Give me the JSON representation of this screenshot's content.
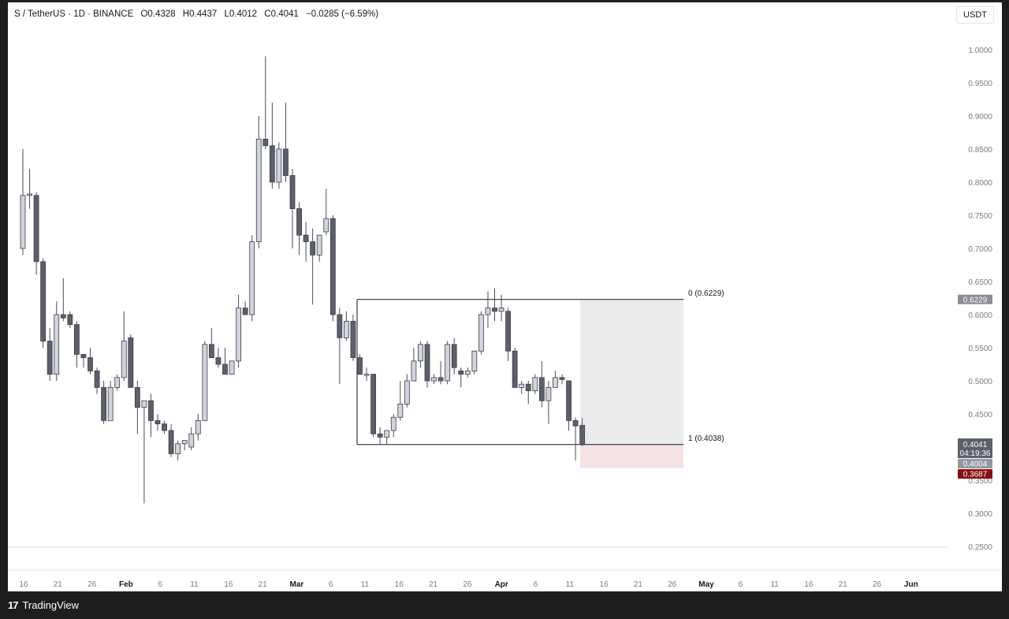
{
  "header": {
    "symbol": "S / TetherUS · 1D · BINANCE",
    "o_label": "O",
    "o_value": "0.4328",
    "h_label": "H",
    "h_value": "0.4437",
    "l_label": "L",
    "l_value": "0.4012",
    "c_label": "C",
    "c_value": "0.4041",
    "change": "−0.0285 (−6.59%)"
  },
  "currency_button": "USDT",
  "brand": {
    "logo_mark": "17",
    "name": "TradingView"
  },
  "chart_data": {
    "type": "candlestick",
    "x_axis_labels": [
      "16",
      "21",
      "26",
      "Feb",
      "6",
      "11",
      "16",
      "21",
      "Mar",
      "6",
      "11",
      "16",
      "21",
      "26",
      "Apr",
      "6",
      "11",
      "16",
      "21",
      "26",
      "May",
      "6",
      "11",
      "16",
      "21",
      "26",
      "Jun"
    ],
    "y_axis_labels": [
      "1.0000",
      "0.9500",
      "0.9000",
      "0.8500",
      "0.8000",
      "0.7500",
      "0.7000",
      "0.6500",
      "0.6000",
      "0.5500",
      "0.5000",
      "0.4500",
      "0.4000",
      "0.3500",
      "0.3000",
      "0.2500"
    ],
    "ylim": [
      0.25,
      1.0
    ],
    "grid": false,
    "candles": [
      {
        "o": 0.7,
        "h": 0.85,
        "l": 0.69,
        "c": 0.78
      },
      {
        "o": 0.78,
        "h": 0.82,
        "l": 0.76,
        "c": 0.782
      },
      {
        "o": 0.78,
        "h": 0.785,
        "l": 0.66,
        "c": 0.68
      },
      {
        "o": 0.68,
        "h": 0.685,
        "l": 0.55,
        "c": 0.56
      },
      {
        "o": 0.56,
        "h": 0.58,
        "l": 0.5,
        "c": 0.51
      },
      {
        "o": 0.51,
        "h": 0.62,
        "l": 0.5,
        "c": 0.6
      },
      {
        "o": 0.6,
        "h": 0.655,
        "l": 0.59,
        "c": 0.595
      },
      {
        "o": 0.6,
        "h": 0.605,
        "l": 0.58,
        "c": 0.585
      },
      {
        "o": 0.585,
        "h": 0.59,
        "l": 0.52,
        "c": 0.54
      },
      {
        "o": 0.54,
        "h": 0.54,
        "l": 0.52,
        "c": 0.535
      },
      {
        "o": 0.535,
        "h": 0.55,
        "l": 0.51,
        "c": 0.515
      },
      {
        "o": 0.515,
        "h": 0.52,
        "l": 0.48,
        "c": 0.49
      },
      {
        "o": 0.49,
        "h": 0.5,
        "l": 0.435,
        "c": 0.44
      },
      {
        "o": 0.44,
        "h": 0.5,
        "l": 0.44,
        "c": 0.49
      },
      {
        "o": 0.49,
        "h": 0.51,
        "l": 0.485,
        "c": 0.505
      },
      {
        "o": 0.505,
        "h": 0.605,
        "l": 0.5,
        "c": 0.56
      },
      {
        "o": 0.565,
        "h": 0.57,
        "l": 0.49,
        "c": 0.49
      },
      {
        "o": 0.49,
        "h": 0.5,
        "l": 0.42,
        "c": 0.46
      },
      {
        "o": 0.46,
        "h": 0.47,
        "l": 0.315,
        "c": 0.47
      },
      {
        "o": 0.47,
        "h": 0.48,
        "l": 0.415,
        "c": 0.44
      },
      {
        "o": 0.44,
        "h": 0.45,
        "l": 0.425,
        "c": 0.435
      },
      {
        "o": 0.435,
        "h": 0.44,
        "l": 0.42,
        "c": 0.425
      },
      {
        "o": 0.425,
        "h": 0.435,
        "l": 0.385,
        "c": 0.39
      },
      {
        "o": 0.39,
        "h": 0.41,
        "l": 0.38,
        "c": 0.405
      },
      {
        "o": 0.405,
        "h": 0.41,
        "l": 0.395,
        "c": 0.41
      },
      {
        "o": 0.4,
        "h": 0.43,
        "l": 0.395,
        "c": 0.42
      },
      {
        "o": 0.42,
        "h": 0.45,
        "l": 0.41,
        "c": 0.44
      },
      {
        "o": 0.44,
        "h": 0.56,
        "l": 0.44,
        "c": 0.555
      },
      {
        "o": 0.555,
        "h": 0.58,
        "l": 0.54,
        "c": 0.535
      },
      {
        "o": 0.535,
        "h": 0.55,
        "l": 0.52,
        "c": 0.525
      },
      {
        "o": 0.525,
        "h": 0.55,
        "l": 0.51,
        "c": 0.51
      },
      {
        "o": 0.51,
        "h": 0.53,
        "l": 0.51,
        "c": 0.53
      },
      {
        "o": 0.53,
        "h": 0.63,
        "l": 0.52,
        "c": 0.61
      },
      {
        "o": 0.61,
        "h": 0.62,
        "l": 0.6,
        "c": 0.6
      },
      {
        "o": 0.6,
        "h": 0.72,
        "l": 0.59,
        "c": 0.71
      },
      {
        "o": 0.71,
        "h": 0.9,
        "l": 0.7,
        "c": 0.865
      },
      {
        "o": 0.865,
        "h": 0.99,
        "l": 0.85,
        "c": 0.855
      },
      {
        "o": 0.855,
        "h": 0.92,
        "l": 0.79,
        "c": 0.8
      },
      {
        "o": 0.8,
        "h": 0.86,
        "l": 0.79,
        "c": 0.85
      },
      {
        "o": 0.85,
        "h": 0.92,
        "l": 0.8,
        "c": 0.81
      },
      {
        "o": 0.81,
        "h": 0.82,
        "l": 0.7,
        "c": 0.76
      },
      {
        "o": 0.76,
        "h": 0.77,
        "l": 0.69,
        "c": 0.72
      },
      {
        "o": 0.72,
        "h": 0.74,
        "l": 0.68,
        "c": 0.71
      },
      {
        "o": 0.71,
        "h": 0.73,
        "l": 0.615,
        "c": 0.69
      },
      {
        "o": 0.69,
        "h": 0.72,
        "l": 0.68,
        "c": 0.72
      },
      {
        "o": 0.725,
        "h": 0.79,
        "l": 0.72,
        "c": 0.745
      },
      {
        "o": 0.745,
        "h": 0.75,
        "l": 0.59,
        "c": 0.6
      },
      {
        "o": 0.6,
        "h": 0.61,
        "l": 0.495,
        "c": 0.565
      },
      {
        "o": 0.565,
        "h": 0.605,
        "l": 0.56,
        "c": 0.59
      },
      {
        "o": 0.59,
        "h": 0.6,
        "l": 0.53,
        "c": 0.535
      },
      {
        "o": 0.535,
        "h": 0.54,
        "l": 0.51,
        "c": 0.51
      },
      {
        "o": 0.51,
        "h": 0.52,
        "l": 0.5,
        "c": 0.51
      },
      {
        "o": 0.51,
        "h": 0.51,
        "l": 0.415,
        "c": 0.42
      },
      {
        "o": 0.42,
        "h": 0.43,
        "l": 0.405,
        "c": 0.415
      },
      {
        "o": 0.415,
        "h": 0.425,
        "l": 0.405,
        "c": 0.425
      },
      {
        "o": 0.425,
        "h": 0.45,
        "l": 0.415,
        "c": 0.445
      },
      {
        "o": 0.445,
        "h": 0.5,
        "l": 0.44,
        "c": 0.465
      },
      {
        "o": 0.465,
        "h": 0.51,
        "l": 0.46,
        "c": 0.5
      },
      {
        "o": 0.5,
        "h": 0.55,
        "l": 0.5,
        "c": 0.53
      },
      {
        "o": 0.53,
        "h": 0.56,
        "l": 0.52,
        "c": 0.555
      },
      {
        "o": 0.555,
        "h": 0.56,
        "l": 0.49,
        "c": 0.5
      },
      {
        "o": 0.5,
        "h": 0.51,
        "l": 0.495,
        "c": 0.505
      },
      {
        "o": 0.505,
        "h": 0.53,
        "l": 0.495,
        "c": 0.5
      },
      {
        "o": 0.5,
        "h": 0.56,
        "l": 0.495,
        "c": 0.555
      },
      {
        "o": 0.555,
        "h": 0.565,
        "l": 0.51,
        "c": 0.52
      },
      {
        "o": 0.515,
        "h": 0.52,
        "l": 0.49,
        "c": 0.51
      },
      {
        "o": 0.51,
        "h": 0.52,
        "l": 0.505,
        "c": 0.515
      },
      {
        "o": 0.515,
        "h": 0.545,
        "l": 0.51,
        "c": 0.545
      },
      {
        "o": 0.545,
        "h": 0.605,
        "l": 0.54,
        "c": 0.6
      },
      {
        "o": 0.6,
        "h": 0.635,
        "l": 0.58,
        "c": 0.61
      },
      {
        "o": 0.61,
        "h": 0.64,
        "l": 0.59,
        "c": 0.605
      },
      {
        "o": 0.605,
        "h": 0.63,
        "l": 0.59,
        "c": 0.61
      },
      {
        "o": 0.605,
        "h": 0.61,
        "l": 0.53,
        "c": 0.545
      },
      {
        "o": 0.545,
        "h": 0.55,
        "l": 0.49,
        "c": 0.49
      },
      {
        "o": 0.49,
        "h": 0.5,
        "l": 0.48,
        "c": 0.495
      },
      {
        "o": 0.495,
        "h": 0.5,
        "l": 0.465,
        "c": 0.485
      },
      {
        "o": 0.485,
        "h": 0.51,
        "l": 0.48,
        "c": 0.505
      },
      {
        "o": 0.505,
        "h": 0.53,
        "l": 0.46,
        "c": 0.47
      },
      {
        "o": 0.47,
        "h": 0.5,
        "l": 0.435,
        "c": 0.49
      },
      {
        "o": 0.49,
        "h": 0.515,
        "l": 0.49,
        "c": 0.505
      },
      {
        "o": 0.505,
        "h": 0.51,
        "l": 0.495,
        "c": 0.502
      },
      {
        "o": 0.5,
        "h": 0.5,
        "l": 0.425,
        "c": 0.44
      },
      {
        "o": 0.44,
        "h": 0.445,
        "l": 0.38,
        "c": 0.432
      },
      {
        "o": 0.4328,
        "h": 0.4437,
        "l": 0.4012,
        "c": 0.4041
      }
    ],
    "fib_levels": [
      {
        "label": "0 (0.6229)",
        "value": 0.6229
      },
      {
        "label": "1 (0.4038)",
        "value": 0.4038
      }
    ],
    "price_tags": {
      "level_0": "0.6229",
      "last_price": "0.4041",
      "countdown": "04:19:36",
      "mid": "0.4004",
      "stop": "0.3687"
    },
    "stop_level": 0.3687,
    "colors": {
      "bull": "#d1d4dc",
      "bear": "#5d606b",
      "wick": "#4a4d57",
      "target_zone": "#ebebeb",
      "stop_zone": "#f5e2e2",
      "stop_tag": "#871010",
      "last_tag": "#5d606b",
      "level_tag": "#8a8d94"
    }
  }
}
